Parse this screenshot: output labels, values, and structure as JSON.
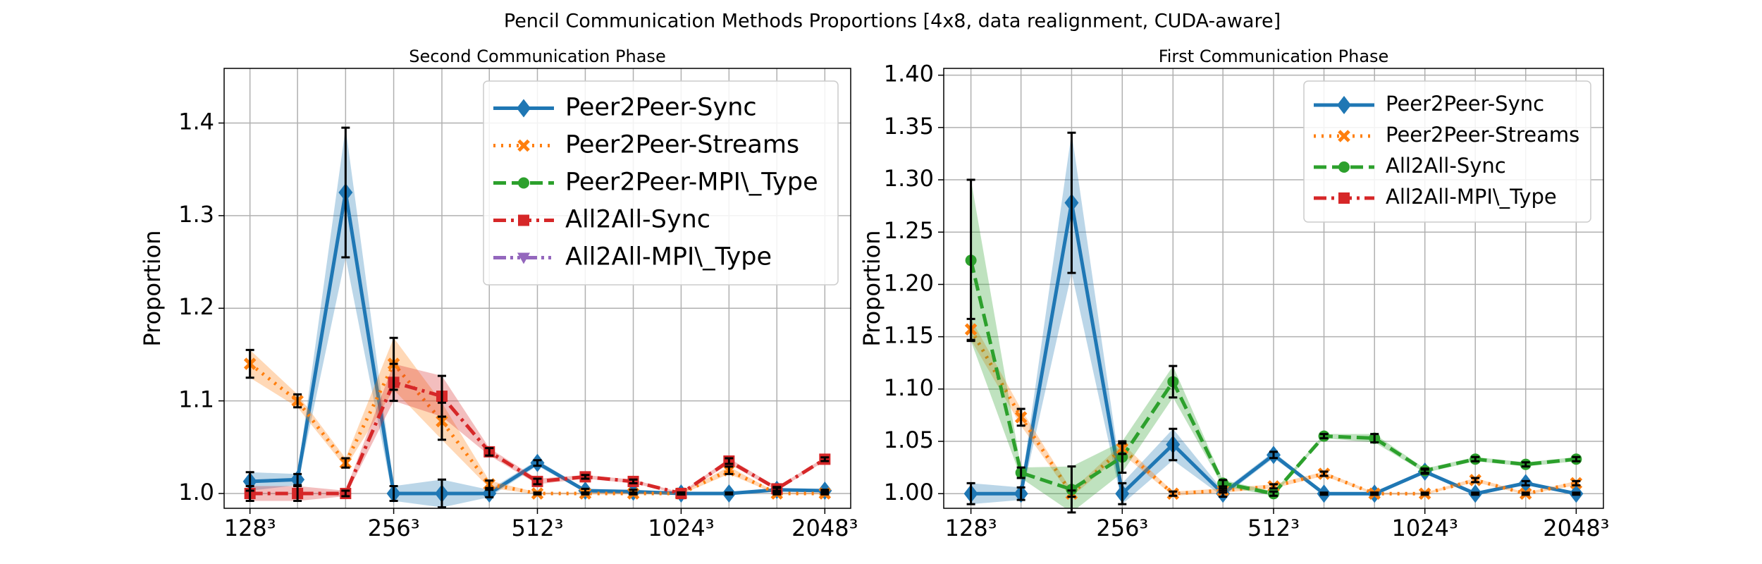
{
  "title": "Pencil Communication Methods Proportions [4x8, data realignment, CUDA-aware]",
  "chart_data": [
    {
      "type": "line",
      "title": "Second Communication Phase",
      "y_label": "Proportion",
      "x": [
        128,
        161,
        203,
        256,
        323,
        406,
        512,
        645,
        813,
        1024,
        1290,
        1625,
        2048
      ],
      "xscale": "log",
      "xlim": [
        113,
        2320
      ],
      "xticks": [
        {
          "value": 128,
          "label": "128³"
        },
        {
          "value": 256,
          "label": "256³"
        },
        {
          "value": 512,
          "label": "512³"
        },
        {
          "value": 1024,
          "label": "1024³"
        },
        {
          "value": 2048,
          "label": "2048³"
        }
      ],
      "ylim": [
        0.984,
        1.459
      ],
      "yticks": [
        {
          "value": 1.0,
          "label": "1.0"
        },
        {
          "value": 1.1,
          "label": "1.1"
        },
        {
          "value": 1.2,
          "label": "1.2"
        },
        {
          "value": 1.3,
          "label": "1.3"
        },
        {
          "value": 1.4,
          "label": "1.4"
        }
      ],
      "grid": true,
      "legend": "upper right",
      "series": [
        {
          "name": "Peer2Peer-Sync",
          "color": "#1f77b4",
          "linestyle": "solid",
          "marker": "diamond",
          "values": [
            1.013,
            1.015,
            1.325,
            1.0,
            1.0,
            1.0,
            1.033,
            1.003,
            1.002,
            1.0,
            1.0,
            1.004,
            1.003
          ],
          "errors": [
            0.01,
            0.006,
            0.07,
            0.008,
            0.015,
            0.004,
            0.003,
            0.002,
            0.002,
            0.001,
            0.001,
            0.002,
            0.001
          ]
        },
        {
          "name": "Peer2Peer-Streams",
          "color": "#ff7f0e",
          "linestyle": "dotted",
          "marker": "x",
          "values": [
            1.14,
            1.1,
            1.033,
            1.14,
            1.078,
            1.01,
            1.0,
            1.0,
            1.0,
            1.0,
            1.025,
            1.0,
            1.0
          ],
          "errors": [
            0.015,
            0.007,
            0.005,
            0.028,
            0.02,
            0.004,
            0.001,
            0.001,
            0.001,
            0.001,
            0.004,
            0.001,
            0.001
          ]
        },
        {
          "name": "Peer2Peer-MPI\\_Type",
          "color": "#2ca02c",
          "linestyle": "dashed",
          "marker": "circle",
          "values": [
            null,
            null,
            null,
            null,
            null,
            null,
            null,
            null,
            null,
            null,
            null,
            null,
            null
          ],
          "errors": [
            null,
            null,
            null,
            null,
            null,
            null,
            null,
            null,
            null,
            null,
            null,
            null,
            null
          ]
        },
        {
          "name": "All2All-Sync",
          "color": "#d62728",
          "linestyle": "dashdot",
          "marker": "square",
          "values": [
            1.0,
            1.0,
            1.0,
            1.12,
            1.105,
            1.045,
            1.013,
            1.018,
            1.013,
            1.0,
            1.035,
            1.005,
            1.037
          ],
          "errors": [
            0.008,
            0.008,
            0.003,
            0.02,
            0.022,
            0.004,
            0.003,
            0.002,
            0.002,
            0.001,
            0.003,
            0.002,
            0.002
          ]
        },
        {
          "name": "All2All-MPI\\_Type",
          "color": "#9467bd",
          "linestyle": "dashdotdot",
          "marker": "triangle",
          "values": [
            null,
            null,
            null,
            null,
            null,
            null,
            null,
            null,
            null,
            null,
            null,
            null,
            null
          ],
          "errors": [
            null,
            null,
            null,
            null,
            null,
            null,
            null,
            null,
            null,
            null,
            null,
            null,
            null
          ]
        }
      ]
    },
    {
      "type": "line",
      "title": "First Communication Phase",
      "y_label": "Proportion",
      "x": [
        128,
        161,
        203,
        256,
        323,
        406,
        512,
        645,
        813,
        1024,
        1290,
        1625,
        2048
      ],
      "xscale": "log",
      "xlim": [
        113,
        2320
      ],
      "xticks": [
        {
          "value": 128,
          "label": "128³"
        },
        {
          "value": 256,
          "label": "256³"
        },
        {
          "value": 512,
          "label": "512³"
        },
        {
          "value": 1024,
          "label": "1024³"
        },
        {
          "value": 2048,
          "label": "2048³"
        }
      ],
      "ylim": [
        0.986,
        1.4065
      ],
      "yticks": [
        {
          "value": 1.0,
          "label": "1.00"
        },
        {
          "value": 1.05,
          "label": "1.05"
        },
        {
          "value": 1.1,
          "label": "1.10"
        },
        {
          "value": 1.15,
          "label": "1.15"
        },
        {
          "value": 1.2,
          "label": "1.20"
        },
        {
          "value": 1.25,
          "label": "1.25"
        },
        {
          "value": 1.3,
          "label": "1.30"
        },
        {
          "value": 1.35,
          "label": "1.35"
        },
        {
          "value": 1.4,
          "label": "1.40"
        }
      ],
      "grid": true,
      "legend": "upper right",
      "series": [
        {
          "name": "Peer2Peer-Sync",
          "color": "#1f77b4",
          "linestyle": "solid",
          "marker": "diamond",
          "values": [
            1.0,
            1.0,
            1.278,
            1.0,
            1.047,
            1.0,
            1.037,
            1.0,
            1.0,
            1.021,
            1.0,
            1.01,
            1.0
          ],
          "errors": [
            0.01,
            0.006,
            0.067,
            0.01,
            0.015,
            0.003,
            0.003,
            0.001,
            0.001,
            0.002,
            0.001,
            0.002,
            0.001
          ]
        },
        {
          "name": "Peer2Peer-Streams",
          "color": "#ff7f0e",
          "linestyle": "dotted",
          "marker": "x",
          "values": [
            1.157,
            1.073,
            1.0,
            1.043,
            1.0,
            1.003,
            1.007,
            1.019,
            1.0,
            1.0,
            1.013,
            1.0,
            1.01
          ],
          "errors": [
            0.01,
            0.008,
            0.003,
            0.005,
            0.002,
            0.002,
            0.002,
            0.002,
            0.001,
            0.001,
            0.002,
            0.001,
            0.002
          ]
        },
        {
          "name": "All2All-Sync",
          "color": "#2ca02c",
          "linestyle": "dashed",
          "marker": "circle",
          "values": [
            1.223,
            1.02,
            1.004,
            1.035,
            1.107,
            1.01,
            1.0,
            1.055,
            1.053,
            1.022,
            1.033,
            1.028,
            1.033
          ],
          "errors": [
            0.077,
            0.005,
            0.022,
            0.015,
            0.015,
            0.003,
            0.002,
            0.002,
            0.004,
            0.002,
            0.002,
            0.002,
            0.002
          ]
        },
        {
          "name": "All2All-MPI\\_Type",
          "color": "#d62728",
          "linestyle": "dashdot",
          "marker": "square",
          "values": [
            null,
            null,
            null,
            null,
            null,
            null,
            null,
            null,
            null,
            null,
            null,
            null,
            null
          ],
          "errors": [
            null,
            null,
            null,
            null,
            null,
            null,
            null,
            null,
            null,
            null,
            null,
            null,
            null
          ]
        }
      ]
    }
  ]
}
